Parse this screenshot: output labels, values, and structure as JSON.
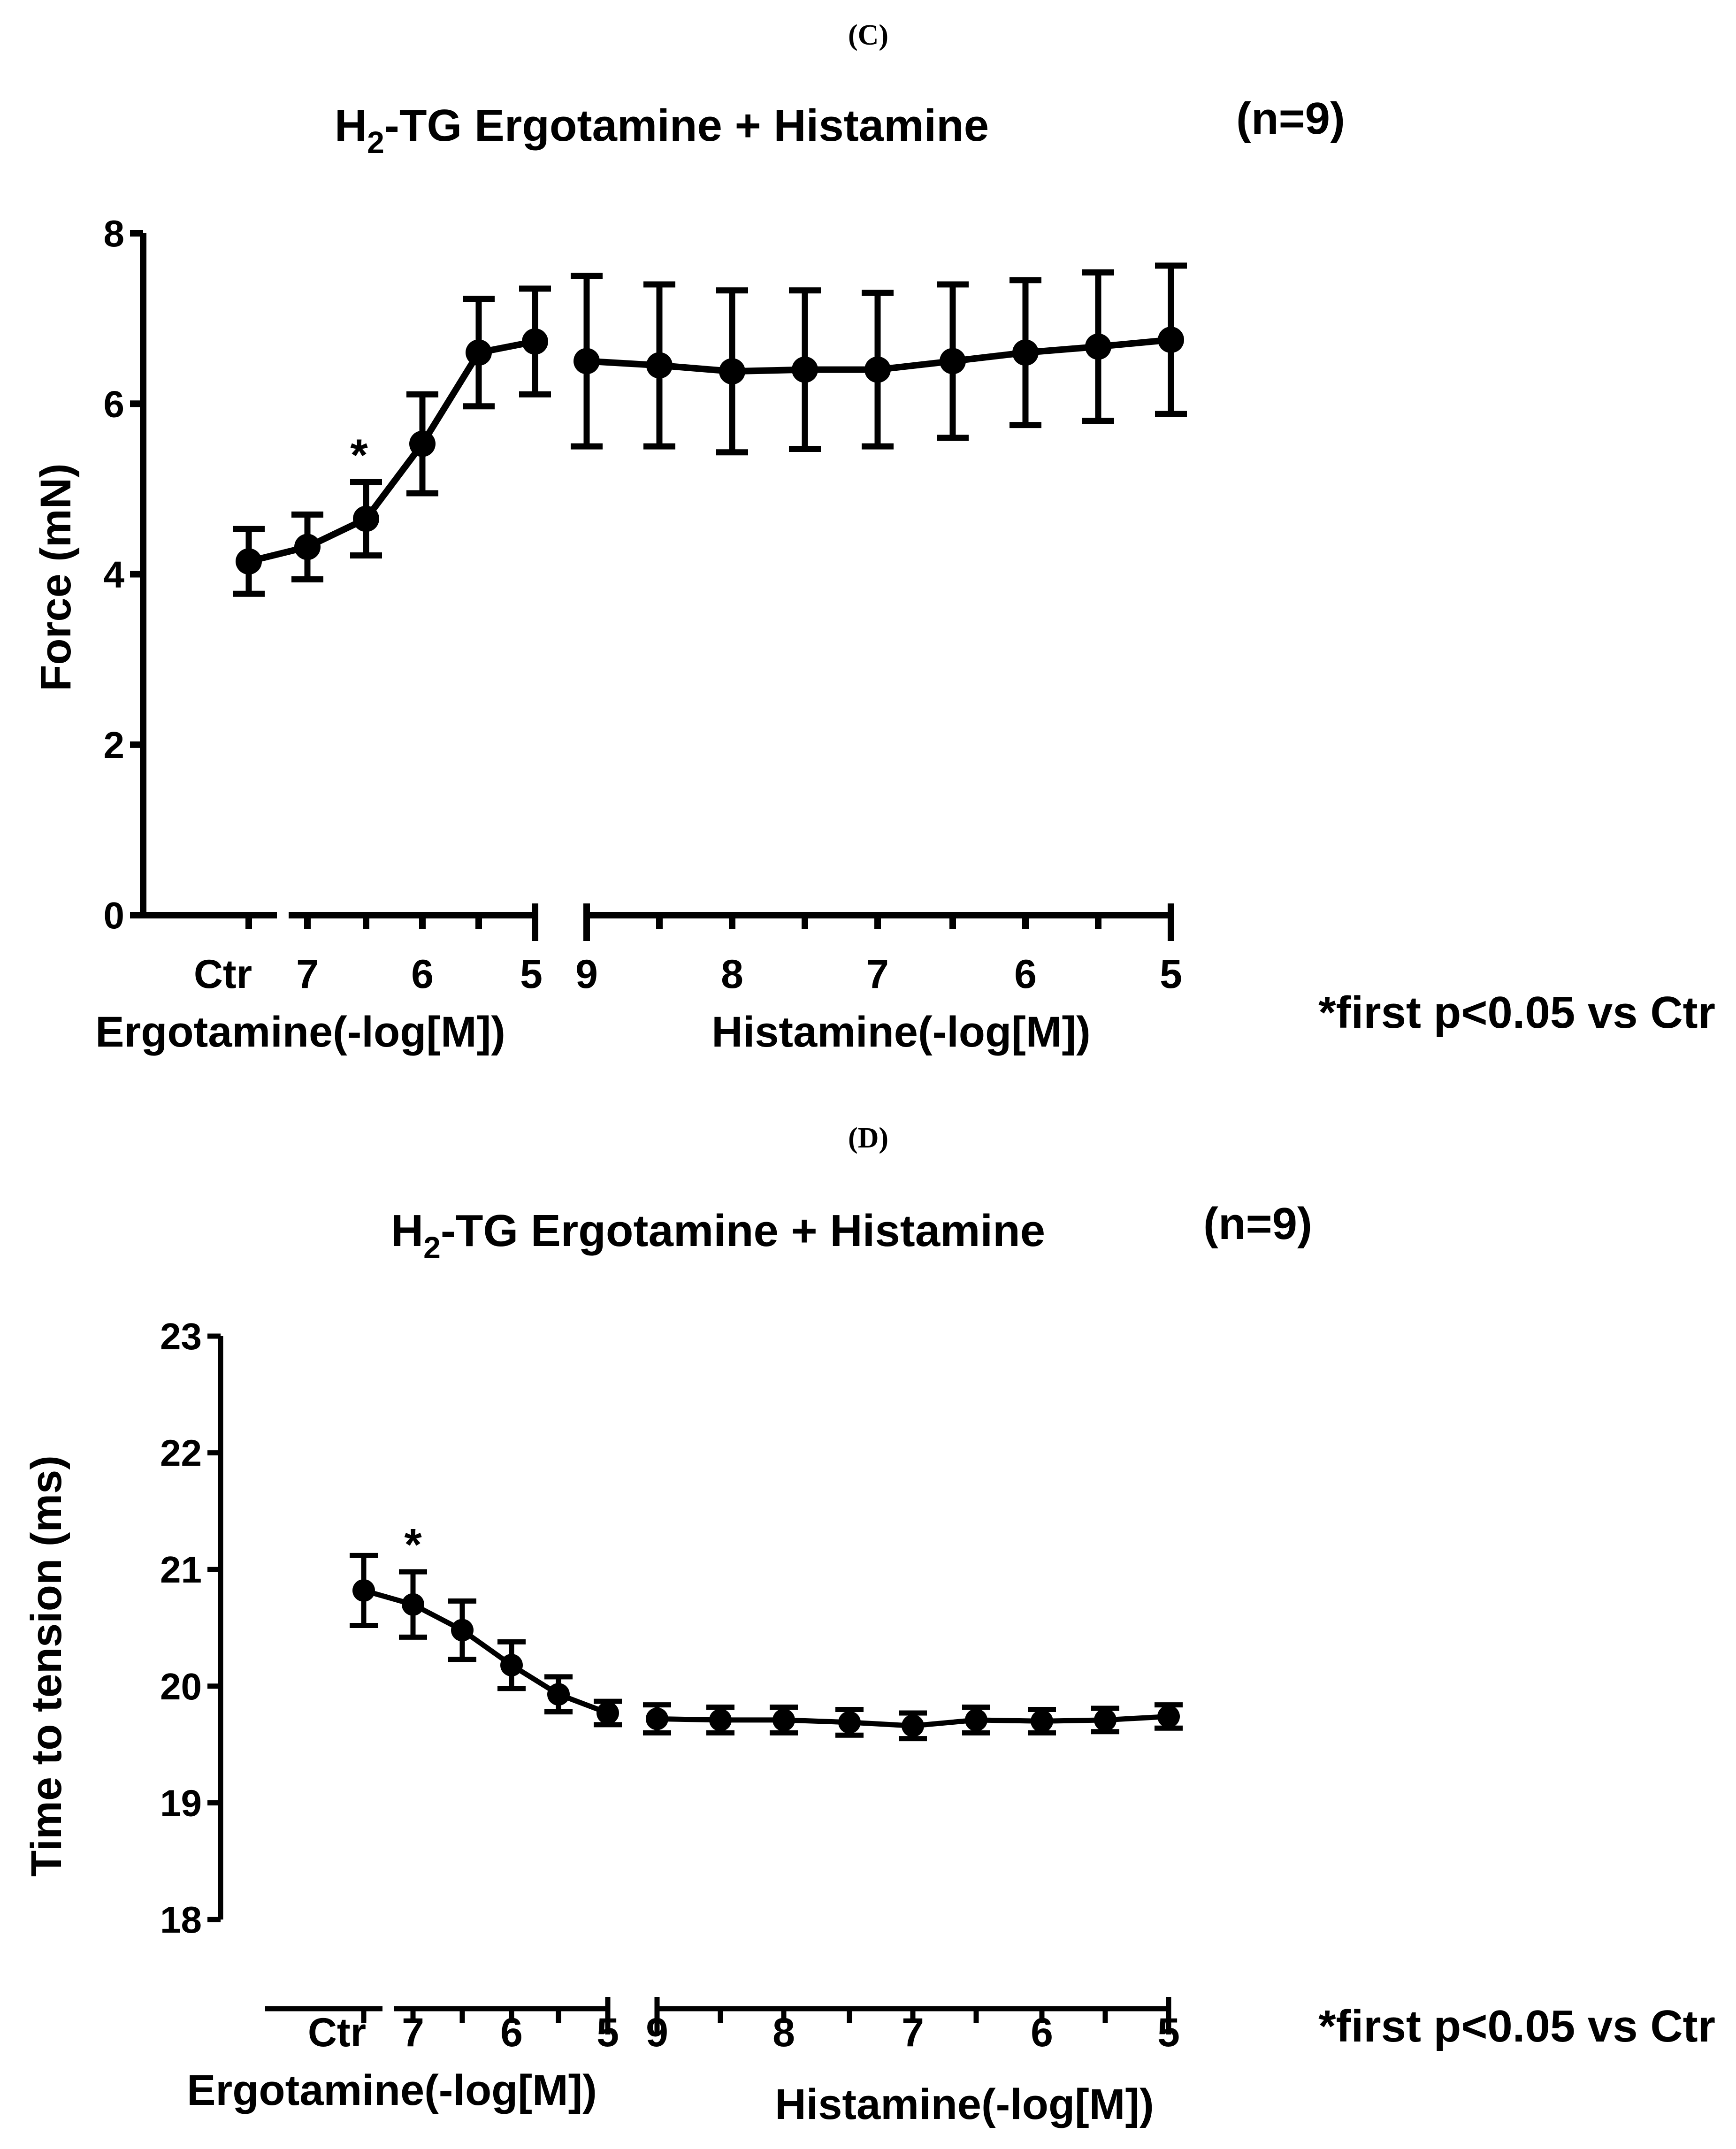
{
  "chart_data": [
    {
      "panel": "(C)",
      "type": "line",
      "title_main": "H",
      "title_sub": "2",
      "title_rest": "-TG Ergotamine + Histamine",
      "n_label": "(n=9)",
      "ylabel": "Force (mN)",
      "ylim": [
        0,
        8
      ],
      "yticks": [
        "0",
        "2",
        "4",
        "6",
        "8"
      ],
      "note": "*first p<0.05 vs Ctr",
      "groups": [
        {
          "xlabel": "Ergotamine(-log[M])",
          "tick_labels": [
            "Ctr",
            "7",
            "6",
            "5"
          ],
          "x": [
            "Ctr",
            "7",
            "6.5",
            "6",
            "5.5",
            "5"
          ],
          "values": [
            4.15,
            4.32,
            4.65,
            5.53,
            6.6,
            6.73
          ],
          "errors": [
            0.38,
            0.38,
            0.43,
            0.58,
            0.63,
            0.62
          ],
          "significance": [
            "",
            "",
            "*",
            "",
            "",
            ""
          ]
        },
        {
          "xlabel": "Histamine(-log[M])",
          "tick_labels": [
            "9",
            "8",
            "7",
            "6",
            "5"
          ],
          "x": [
            "9",
            "8.5",
            "8",
            "7.5",
            "7",
            "6.5",
            "6",
            "5.5",
            "5"
          ],
          "values": [
            6.5,
            6.45,
            6.38,
            6.4,
            6.4,
            6.5,
            6.6,
            6.67,
            6.75
          ],
          "errors": [
            1.0,
            0.95,
            0.95,
            0.93,
            0.9,
            0.9,
            0.85,
            0.87,
            0.87
          ],
          "significance": [
            "",
            "",
            "",
            "",
            "",
            "",
            "",
            "",
            ""
          ]
        }
      ]
    },
    {
      "panel": "(D)",
      "type": "line",
      "title_main": "H",
      "title_sub": "2",
      "title_rest": "-TG Ergotamine + Histamine",
      "n_label": "(n=9)",
      "ylabel": "Time to tension (ms)",
      "ylim": [
        18,
        23
      ],
      "yticks": [
        "18",
        "19",
        "20",
        "21",
        "22",
        "23"
      ],
      "note": "*first p<0.05 vs Ctr",
      "groups": [
        {
          "xlabel": "Ergotamine(-log[M])",
          "tick_labels": [
            "Ctr",
            "7",
            "6",
            "5"
          ],
          "x": [
            "Ctr",
            "7",
            "6.5",
            "6",
            "5.5",
            "5"
          ],
          "values": [
            20.82,
            20.7,
            20.48,
            20.18,
            19.93,
            19.77
          ],
          "errors": [
            0.3,
            0.28,
            0.25,
            0.2,
            0.15,
            0.1
          ],
          "significance": [
            "",
            "*",
            "",
            "",
            "",
            ""
          ]
        },
        {
          "xlabel": "Histamine(-log[M])",
          "tick_labels": [
            "9",
            "8",
            "7",
            "6",
            "5"
          ],
          "x": [
            "9",
            "8.5",
            "8",
            "7.5",
            "7",
            "6.5",
            "6",
            "5.5",
            "5"
          ],
          "values": [
            19.72,
            19.71,
            19.71,
            19.69,
            19.66,
            19.71,
            19.7,
            19.71,
            19.74
          ],
          "errors": [
            0.12,
            0.11,
            0.11,
            0.11,
            0.11,
            0.11,
            0.1,
            0.1,
            0.1
          ],
          "significance": [
            "",
            "",
            "",
            "",
            "",
            "",
            "",
            "",
            ""
          ]
        }
      ]
    }
  ]
}
